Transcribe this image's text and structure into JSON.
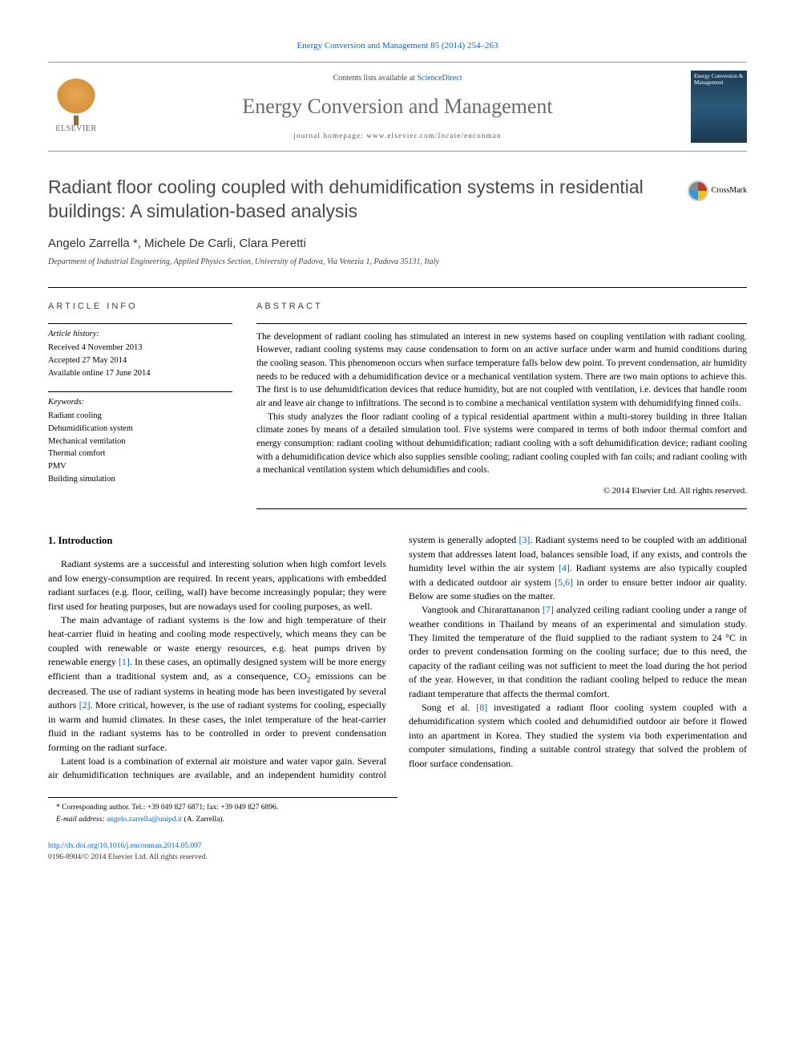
{
  "header": {
    "citation": "Energy Conversion and Management 85 (2014) 254–263",
    "contents_prefix": "Contents lists available at ",
    "contents_link": "ScienceDirect",
    "journal_name": "Energy Conversion and Management",
    "homepage_prefix": "journal homepage: ",
    "homepage_url": "www.elsevier.com/locate/enconman",
    "publisher_name": "ELSEVIER",
    "cover_title": "Energy Conversion & Management"
  },
  "article": {
    "title": "Radiant floor cooling coupled with dehumidification systems in residential buildings: A simulation-based analysis",
    "crossmark_label": "CrossMark",
    "authors_html": "Angelo Zarrella *, Michele De Carli, Clara Peretti",
    "affiliation": "Department of Industrial Engineering, Applied Physics Section, University of Padova, Via Venezia 1, Padova 35131, Italy"
  },
  "info": {
    "heading": "ARTICLE INFO",
    "history_head": "Article history:",
    "received": "Received 4 November 2013",
    "accepted": "Accepted 27 May 2014",
    "online": "Available online 17 June 2014",
    "keywords_head": "Keywords:",
    "keywords": [
      "Radiant cooling",
      "Dehumidification system",
      "Mechanical ventilation",
      "Thermal comfort",
      "PMV",
      "Building simulation"
    ]
  },
  "abstract": {
    "heading": "ABSTRACT",
    "p1": "The development of radiant cooling has stimulated an interest in new systems based on coupling ventilation with radiant cooling. However, radiant cooling systems may cause condensation to form on an active surface under warm and humid conditions during the cooling season. This phenomenon occurs when surface temperature falls below dew point. To prevent condensation, air humidity needs to be reduced with a dehumidification device or a mechanical ventilation system. There are two main options to achieve this. The first is to use dehumidification devices that reduce humidity, but are not coupled with ventilation, i.e. devices that handle room air and leave air change to infiltrations. The second is to combine a mechanical ventilation system with dehumidifying finned coils.",
    "p2": "This study analyzes the floor radiant cooling of a typical residential apartment within a multi-storey building in three Italian climate zones by means of a detailed simulation tool. Five systems were compared in terms of both indoor thermal comfort and energy consumption: radiant cooling without dehumidification; radiant cooling with a soft dehumidification device; radiant cooling with a dehumidification device which also supplies sensible cooling; radiant cooling coupled with fan coils; and radiant cooling with a mechanical ventilation system which dehumidifies and cools.",
    "copyright": "© 2014 Elsevier Ltd. All rights reserved."
  },
  "body": {
    "section1_title": "1. Introduction",
    "p1": "Radiant systems are a successful and interesting solution when high comfort levels and low energy-consumption are required. In recent years, applications with embedded radiant surfaces (e.g. floor, ceiling, wall) have become increasingly popular; they were first used for heating purposes, but are nowadays used for cooling purposes, as well.",
    "p2a": "The main advantage of radiant systems is the low and high temperature of their heat-carrier fluid in heating and cooling mode respectively, which means they can be coupled with renewable or waste energy resources, e.g. heat pumps driven by renewable energy ",
    "ref1": "[1]",
    "p2b": ". In these cases, an optimally designed system will be more energy efficient than a traditional system and, as a consequence, CO",
    "sub2": "2",
    "p2c": " emissions can be decreased. The use of radiant systems in heating mode has been investigated by several authors ",
    "ref2": "[2]",
    "p2d": ". More critical, however, is the use of radiant systems for cooling, especially in warm and humid climates. In these cases, the inlet temperature of the heat-carrier fluid in the radiant systems has to be controlled in order to prevent condensation forming on the radiant surface.",
    "p3a": "Latent load is a combination of external air moisture and water vapor gain. Several air dehumidification techniques are available, and an independent humidity control system is generally adopted ",
    "ref3": "[3]",
    "p3b": ". Radiant systems need to be coupled with an additional system that addresses latent load, balances sensible load, if any exists, and controls the humidity level within the air system ",
    "ref4": "[4]",
    "p3c": ". Radiant systems are also typically coupled with a dedicated outdoor air system ",
    "ref56": "[5,6]",
    "p3d": " in order to ensure better indoor air quality. Below are some studies on the matter.",
    "p4a": "Vangtook and Chirarattananon ",
    "ref7": "[7]",
    "p4b": " analyzed ceiling radiant cooling under a range of weather conditions in Thailand by means of an experimental and simulation study. They limited the temperature of the fluid supplied to the radiant system to 24 °C in order to prevent condensation forming on the cooling surface; due to this need, the capacity of the radiant ceiling was not sufficient to meet the load during the hot period of the year. However, in that condition the radiant cooling helped to reduce the mean radiant temperature that affects the thermal comfort.",
    "p5a": "Song et al. ",
    "ref8": "[8]",
    "p5b": " investigated a radiant floor cooling system coupled with a dehumidification system which cooled and dehumidified outdoor air before it flowed into an apartment in Korea. They studied the system via both experimentation and computer simulations, finding a suitable control strategy that solved the problem of floor surface condensation."
  },
  "footnote": {
    "corr": "* Corresponding author. Tel.: +39 049 827 6871; fax: +39 049 827 6896.",
    "email_label": "E-mail address: ",
    "email": "angelo.zarrella@unipd.it",
    "email_suffix": " (A. Zarrella)."
  },
  "footer": {
    "doi": "http://dx.doi.org/10.1016/j.enconman.2014.05.097",
    "issn_copyright": "0196-8904/© 2014 Elsevier Ltd. All rights reserved."
  },
  "colors": {
    "link": "#0066cc",
    "title_gray": "#4a4a4a",
    "journal_gray": "#6b6b6b"
  }
}
